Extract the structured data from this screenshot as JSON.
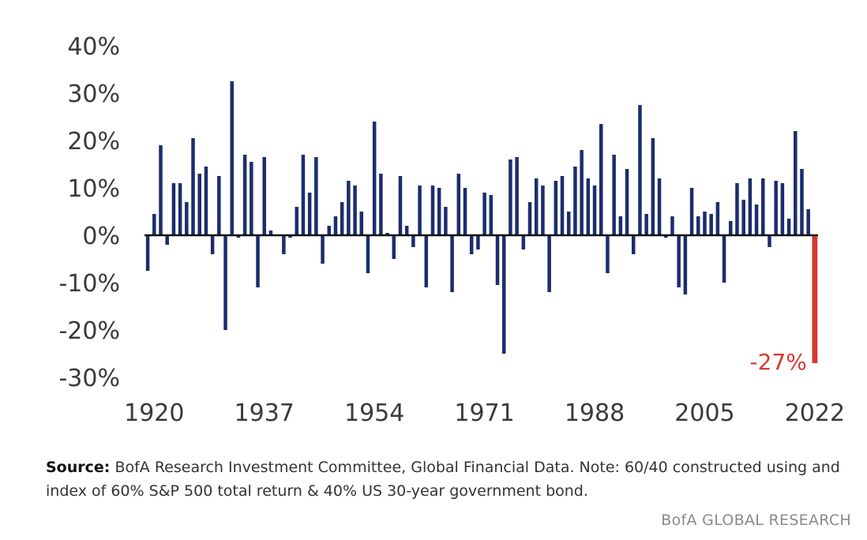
{
  "chart_data": {
    "type": "bar",
    "ylim": [
      -30,
      40
    ],
    "y_ticks": [
      40,
      30,
      20,
      10,
      0,
      -10,
      -20,
      -30
    ],
    "y_tick_suffix": "%",
    "x_ticks": [
      1920,
      1937,
      1954,
      1971,
      1988,
      2005,
      2022
    ],
    "x_start": 1919,
    "x_end": 2022,
    "colors": {
      "bar": "#1b2d6b",
      "highlight": "#d8382d",
      "axis": "#111111"
    },
    "highlight": {
      "x": 2022,
      "value": -27,
      "label": "-27%"
    },
    "series": [
      {
        "x": [
          1919,
          1920,
          1921,
          1922,
          1923,
          1924,
          1925,
          1926,
          1927,
          1928,
          1929,
          1930,
          1931,
          1932,
          1933,
          1934,
          1935,
          1936,
          1937,
          1938,
          1939,
          1940,
          1941,
          1942,
          1943,
          1944,
          1945,
          1946,
          1947,
          1948,
          1949,
          1950,
          1951,
          1952,
          1953,
          1954,
          1955,
          1956,
          1957,
          1958,
          1959,
          1960,
          1961,
          1962,
          1963,
          1964,
          1965,
          1966,
          1967,
          1968,
          1969,
          1970,
          1971,
          1972,
          1973,
          1974,
          1975,
          1976,
          1977,
          1978,
          1979,
          1980,
          1981,
          1982,
          1983,
          1984,
          1985,
          1986,
          1987,
          1988,
          1989,
          1990,
          1991,
          1992,
          1993,
          1994,
          1995,
          1996,
          1997,
          1998,
          1999,
          2000,
          2001,
          2002,
          2003,
          2004,
          2005,
          2006,
          2007,
          2008,
          2009,
          2010,
          2011,
          2012,
          2013,
          2014,
          2015,
          2016,
          2017,
          2018,
          2019,
          2020,
          2021,
          2022
        ],
        "values": [
          -7.5,
          4.5,
          19,
          -2,
          11,
          11,
          7,
          20.5,
          13,
          14.5,
          -4,
          12.5,
          -20,
          32.5,
          -0.5,
          17,
          15.5,
          -11,
          16.5,
          1,
          0,
          -4,
          -0.5,
          6,
          17,
          9,
          16.5,
          -6,
          2,
          4,
          7,
          11.5,
          10.5,
          5,
          -8,
          24,
          13,
          0.5,
          -5,
          12.5,
          2,
          -2.5,
          10.5,
          -11,
          10.5,
          10,
          6,
          -12,
          13,
          10,
          -4,
          -3,
          9,
          8.5,
          -10.5,
          -25,
          16,
          16.5,
          -3,
          7,
          12,
          10.5,
          -12,
          11.5,
          12.5,
          5,
          14.5,
          18,
          12,
          10.5,
          23.5,
          -8,
          17,
          4,
          14,
          -4,
          27.5,
          4.5,
          20.5,
          12,
          -0.5,
          4,
          -11,
          -12.5,
          10,
          4,
          5,
          4.5,
          7,
          -10,
          3,
          11,
          7.5,
          12,
          6.5,
          12,
          -2.5,
          11.5,
          11,
          3.5,
          22,
          14,
          5.5,
          -27
        ]
      }
    ]
  },
  "note": {
    "label": "Source:",
    "text": "BofA Research Investment Committee, Global Financial Data. Note: 60/40 constructed using and index of 60% S&P 500 total return & 40% US 30-year government bond."
  },
  "brand": "BofA GLOBAL RESEARCH"
}
